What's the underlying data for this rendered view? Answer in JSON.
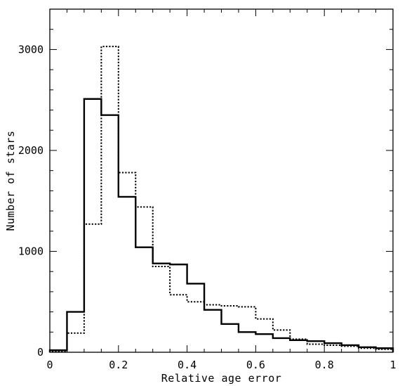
{
  "chart_data": {
    "type": "histogram",
    "xlabel": "Relative age error",
    "ylabel": "Number of stars",
    "xlim": [
      0,
      1
    ],
    "ylim": [
      0,
      3400
    ],
    "x_ticks": [
      0,
      0.2,
      0.4,
      0.6,
      0.8,
      1
    ],
    "x_tick_labels": [
      "0",
      "0.2",
      "0.4",
      "0.6",
      "0.8",
      "1"
    ],
    "y_ticks": [
      0,
      1000,
      2000,
      3000
    ],
    "y_tick_labels": [
      "0",
      "1000",
      "2000",
      "3000"
    ],
    "x_minor_step": 0.05,
    "y_minor_step": 200,
    "bin_edges": [
      0,
      0.05,
      0.1,
      0.15,
      0.2,
      0.25,
      0.3,
      0.35,
      0.4,
      0.45,
      0.5,
      0.55,
      0.6,
      0.65,
      0.7,
      0.75,
      0.8,
      0.85,
      0.9,
      0.95,
      1.0
    ],
    "series": [
      {
        "style": "solid",
        "color": "#000000",
        "values": [
          20,
          400,
          2510,
          2350,
          1540,
          1040,
          880,
          870,
          680,
          420,
          280,
          200,
          180,
          140,
          120,
          110,
          90,
          70,
          50,
          40
        ]
      },
      {
        "style": "dotted",
        "color": "#000000",
        "values": [
          10,
          190,
          1270,
          3030,
          1780,
          1440,
          850,
          570,
          500,
          470,
          460,
          450,
          330,
          220,
          130,
          80,
          70,
          60,
          40,
          30
        ]
      }
    ],
    "grid": false,
    "legend": "none"
  }
}
